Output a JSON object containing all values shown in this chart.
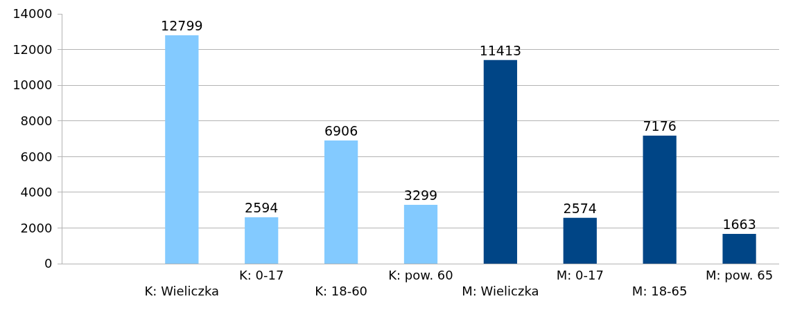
{
  "chart_data": {
    "type": "bar",
    "categories": [
      null,
      "K: Wieliczka",
      "K: 0-17",
      "K: 18-60",
      "K: pow. 60",
      "M: Wieliczka",
      "M: 0-17",
      "M: 18-65",
      "M: pow. 65"
    ],
    "values": [
      null,
      12799,
      2594,
      6906,
      3299,
      11413,
      2574,
      7176,
      1663
    ],
    "colors": [
      "#83caff",
      "#83caff",
      "#83caff",
      "#83caff",
      "#83caff",
      "#004586",
      "#004586",
      "#004586",
      "#004586"
    ],
    "ylim": [
      0,
      14000
    ],
    "yticks": [
      0,
      2000,
      4000,
      6000,
      8000,
      10000,
      12000,
      14000
    ],
    "grid": "y",
    "data_labels": true
  }
}
